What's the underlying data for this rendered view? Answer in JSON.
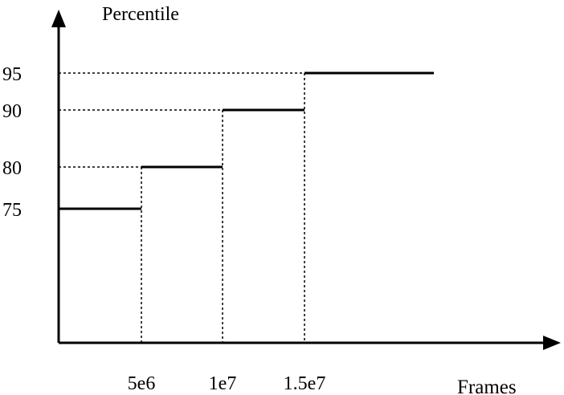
{
  "chart_data": {
    "type": "line",
    "title": "",
    "xlabel": "Frames",
    "ylabel": "Percentile",
    "x_ticks": [
      {
        "value": 5000000,
        "label": "5e6"
      },
      {
        "value": 10000000,
        "label": "1e7"
      },
      {
        "value": 15000000,
        "label": "1.5e7"
      }
    ],
    "y_ticks": [
      {
        "value": 75,
        "label": "75"
      },
      {
        "value": 80,
        "label": "80"
      },
      {
        "value": 90,
        "label": "90"
      },
      {
        "value": 95,
        "label": "95"
      }
    ],
    "steps": [
      {
        "x_start": 0,
        "x_end": 5000000,
        "y": 75
      },
      {
        "x_start": 5000000,
        "x_end": 10000000,
        "y": 80
      },
      {
        "x_start": 10000000,
        "x_end": 15000000,
        "y": 90
      },
      {
        "x_start": 15000000,
        "x_end": 23000000,
        "y": 95
      }
    ],
    "xlim": [
      0,
      30000000
    ],
    "ylim": [
      50,
      100
    ],
    "grid": false,
    "dashed_guides": true,
    "colors": {
      "line": "#000000",
      "background": "#ffffff"
    }
  }
}
